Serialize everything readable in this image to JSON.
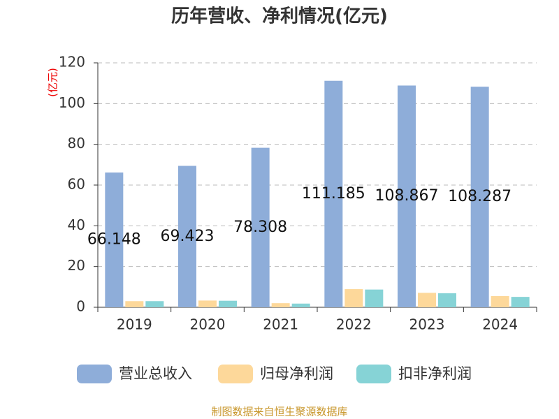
{
  "chart_data": {
    "type": "bar",
    "title": "历年营收、净利情况(亿元)",
    "y_label": "(亿元)",
    "categories": [
      "2019",
      "2020",
      "2021",
      "2022",
      "2023",
      "2024"
    ],
    "series": [
      {
        "name": "营业总收入",
        "color": "#8eadd9",
        "values": [
          66.148,
          69.423,
          78.308,
          111.185,
          108.867,
          108.287
        ],
        "labels": true
      },
      {
        "name": "归母净利润",
        "color": "#fdd89a",
        "values": [
          3.0,
          3.3,
          2.0,
          8.9,
          7.1,
          5.5
        ]
      },
      {
        "name": "扣非净利润",
        "color": "#86d3d6",
        "values": [
          3.0,
          3.2,
          1.8,
          8.7,
          6.9,
          5.1
        ]
      }
    ],
    "ylim": [
      0,
      120
    ],
    "yticks": [
      0,
      20,
      40,
      60,
      80,
      100,
      120
    ],
    "grid": true,
    "source": "制图数据来自恒生聚源数据库"
  }
}
